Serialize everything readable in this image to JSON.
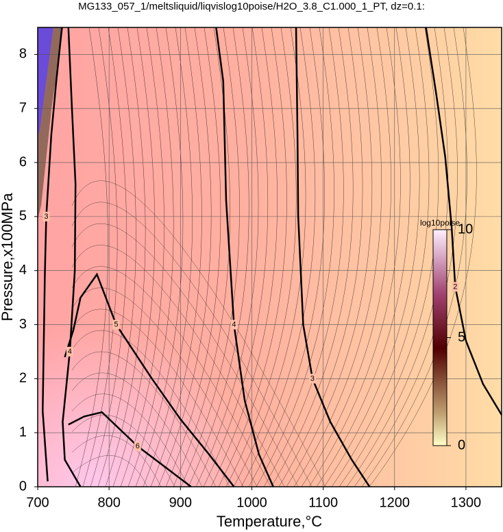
{
  "chart_data": {
    "type": "contour",
    "title": "MG133_057_1/meltsliquid/liqvislog10poise/H2O_3.8_C1.000_1_PT, dz=0.1:",
    "x_label": "Temperature,°C",
    "y_label": "Pressure,x100MPa",
    "xlim": [
      700,
      1350
    ],
    "xticks": [
      700,
      800,
      900,
      1000,
      1100,
      1200,
      1300
    ],
    "ylim": [
      0,
      8.5
    ],
    "yticks": [
      0,
      1,
      2,
      3,
      4,
      5,
      6,
      7,
      8
    ],
    "grid": true,
    "contours": [
      {
        "level": 2,
        "x": [
          1244,
          1258,
          1271,
          1280,
          1285,
          1300,
          1324,
          1350
        ],
        "y": [
          8.5,
          7.3,
          6.1,
          4.8,
          3.7,
          2.7,
          1.9,
          1.33
        ]
      },
      {
        "level": 3,
        "x": [
          1062,
          1064,
          1065,
          1072,
          1085,
          1110,
          1140,
          1165
        ],
        "y": [
          8.5,
          6.5,
          5,
          3,
          2,
          1.2,
          0.5,
          0
        ]
      },
      {
        "level": 4,
        "x": [
          950,
          960,
          964,
          975,
          990,
          1010,
          1030
        ],
        "y": [
          8.5,
          7.5,
          5.3,
          3,
          1.6,
          0.6,
          0
        ]
      },
      {
        "level": 5,
        "x": [
          738,
          750,
          760,
          783,
          810,
          860,
          900,
          940,
          975
        ],
        "y": [
          2.4,
          2.9,
          3.5,
          3.93,
          3.0,
          2.0,
          1.25,
          0.6,
          0
        ]
      },
      {
        "level": 6,
        "x": [
          743,
          765,
          790,
          840,
          890,
          915
        ],
        "y": [
          1.15,
          1.3,
          1.38,
          0.75,
          0.25,
          0
        ]
      },
      {
        "level": 3,
        "x": [
          734,
          726,
          719,
          712,
          710,
          707,
          714
        ],
        "y": [
          8.5,
          7.5,
          6.5,
          5,
          3.9,
          1.4,
          0.1
        ]
      },
      {
        "level": 4,
        "x": [
          743,
          748,
          753,
          752,
          745,
          735,
          738,
          760
        ],
        "y": [
          8.5,
          7,
          5.6,
          4,
          2.5,
          1.2,
          0.5,
          0
        ]
      }
    ],
    "colorbar": {
      "label": "log10poise",
      "lim": [
        0,
        10
      ],
      "ticks": [
        0,
        5,
        10
      ]
    }
  }
}
